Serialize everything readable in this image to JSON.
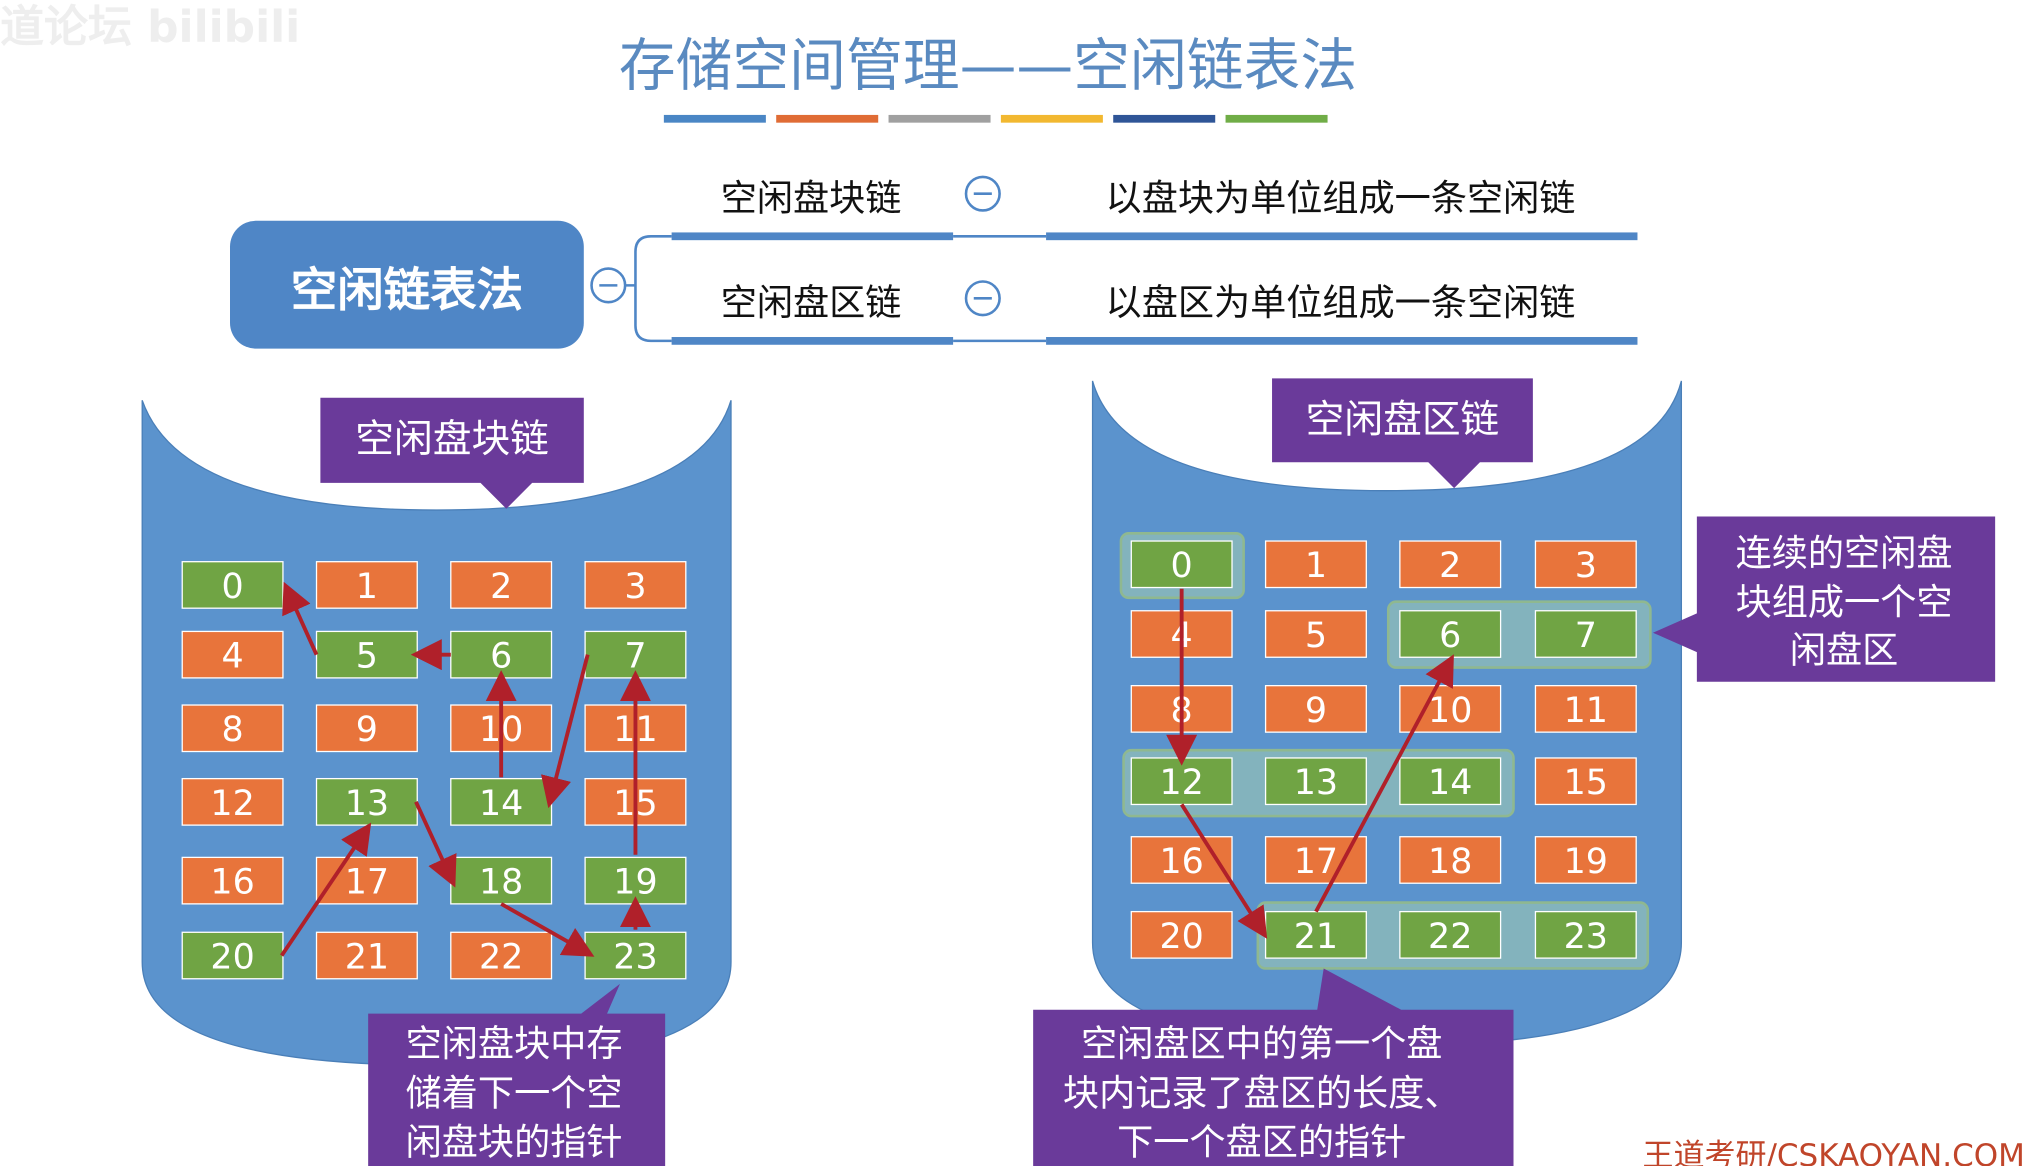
{
  "watermark": "道论坛 bilibili",
  "title": "存储空间管理——空闲链表法",
  "title_bar_colors": [
    "#4a86c5",
    "#e06c35",
    "#a0a0a0",
    "#f2b830",
    "#2f5597",
    "#70ad47"
  ],
  "mindmap": {
    "root": "空闲链表法",
    "branches": [
      {
        "label": "空闲盘块链",
        "desc": "以盘块为单位组成一条空闲链"
      },
      {
        "label": "空闲盘区链",
        "desc": "以盘区为单位组成一条空闲链"
      }
    ]
  },
  "left": {
    "header": "空闲盘块链",
    "free_blocks": [
      0,
      5,
      6,
      7,
      13,
      14,
      18,
      19,
      20,
      23
    ],
    "callout": [
      "空闲盘块中存",
      "储着下一个空",
      "闲盘块的指针"
    ]
  },
  "right": {
    "header": "空闲盘区链",
    "free_blocks": [
      0,
      6,
      7,
      12,
      13,
      14,
      21,
      22,
      23
    ],
    "side_callout": [
      "连续的空闲盘",
      "块组成一个空",
      "闲盘区"
    ],
    "callout": [
      "空闲盘区中的第一个盘",
      "块内记录了盘区的长度、",
      "下一个盘区的指针"
    ]
  },
  "footer": "王道考研/CSKAOYAN.COM",
  "colors": {
    "free": "#70a444",
    "used": "#e8743b",
    "disk": "#5b93cd",
    "callout": "#6a3a9a",
    "arrow": "#b0202a",
    "title": "#5a8ac0"
  }
}
